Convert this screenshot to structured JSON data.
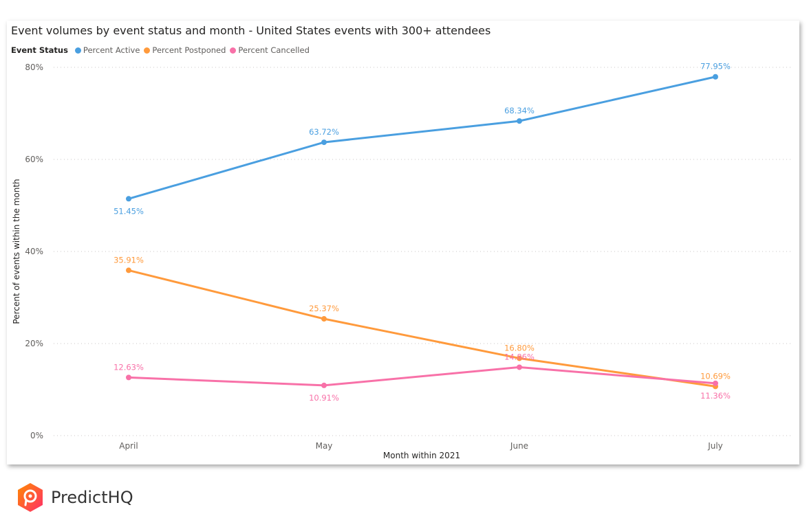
{
  "chart_data": {
    "type": "line",
    "title": "Event volumes by event status and month - United States events with 300+ attendees",
    "legend_title": "Event Status",
    "legend_position": "top-left",
    "xlabel": "Month within 2021",
    "ylabel": "Percent of events within the month",
    "categories": [
      "April",
      "May",
      "June",
      "July"
    ],
    "ylim": [
      0,
      80
    ],
    "yticks": [
      "0%",
      "20%",
      "40%",
      "60%",
      "80%"
    ],
    "grid": true,
    "series": [
      {
        "name": "Percent Active",
        "color": "#4a9fe0",
        "values": [
          51.45,
          63.72,
          68.34,
          77.95
        ],
        "labels": [
          "51.45%",
          "63.72%",
          "68.34%",
          "77.95%"
        ]
      },
      {
        "name": "Percent Postponed",
        "color": "#ff9a3c",
        "values": [
          35.91,
          25.37,
          16.8,
          10.69
        ],
        "labels": [
          "35.91%",
          "25.37%",
          "16.80%",
          "10.69%"
        ]
      },
      {
        "name": "Percent Cancelled",
        "color": "#f871a8",
        "values": [
          12.63,
          10.91,
          14.86,
          11.36
        ],
        "labels": [
          "12.63%",
          "10.91%",
          "14.86%",
          "11.36%"
        ]
      }
    ]
  },
  "brand": {
    "name": "PredictHQ"
  }
}
